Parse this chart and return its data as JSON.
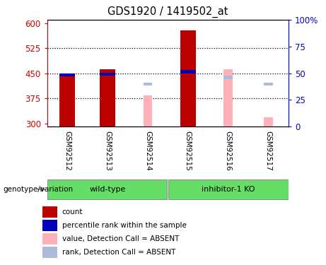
{
  "title": "GDS1920 / 1419502_at",
  "samples": [
    "GSM92512",
    "GSM92513",
    "GSM92514",
    "GSM92515",
    "GSM92516",
    "GSM92517"
  ],
  "ylim_left": [
    290,
    610
  ],
  "yticks_left": [
    300,
    375,
    450,
    525,
    600
  ],
  "yticks_right": [
    0,
    25,
    50,
    75,
    100
  ],
  "ytick_labels_right": [
    "0",
    "25",
    "50",
    "75",
    "100%"
  ],
  "red_bar_samples": [
    0,
    1,
    3
  ],
  "red_bar_values": [
    440,
    463,
    578
  ],
  "blue_marker_samples": [
    0,
    1,
    3
  ],
  "blue_marker_values": [
    440,
    443,
    450
  ],
  "pink_bar_samples": [
    2,
    4,
    5
  ],
  "pink_bar_values": [
    383,
    462,
    318
  ],
  "light_blue_marker_samples": [
    2,
    4,
    5
  ],
  "light_blue_marker_values": [
    413,
    433,
    413
  ],
  "red_color": "#BB0000",
  "blue_color": "#0000BB",
  "pink_color": "#FFB0B8",
  "light_blue_color": "#AABBDD",
  "axis_color_left": "#CC0000",
  "axis_color_right": "#0000CC",
  "green_color": "#66DD66",
  "gray_bg": "#D3D3D3",
  "label_count": "count",
  "label_percentile": "percentile rank within the sample",
  "label_value_absent": "value, Detection Call = ABSENT",
  "label_rank_absent": "rank, Detection Call = ABSENT",
  "genotype_label": "genotype/variation",
  "group_wt": "wild-type",
  "group_ko": "inhibitor-1 KO"
}
